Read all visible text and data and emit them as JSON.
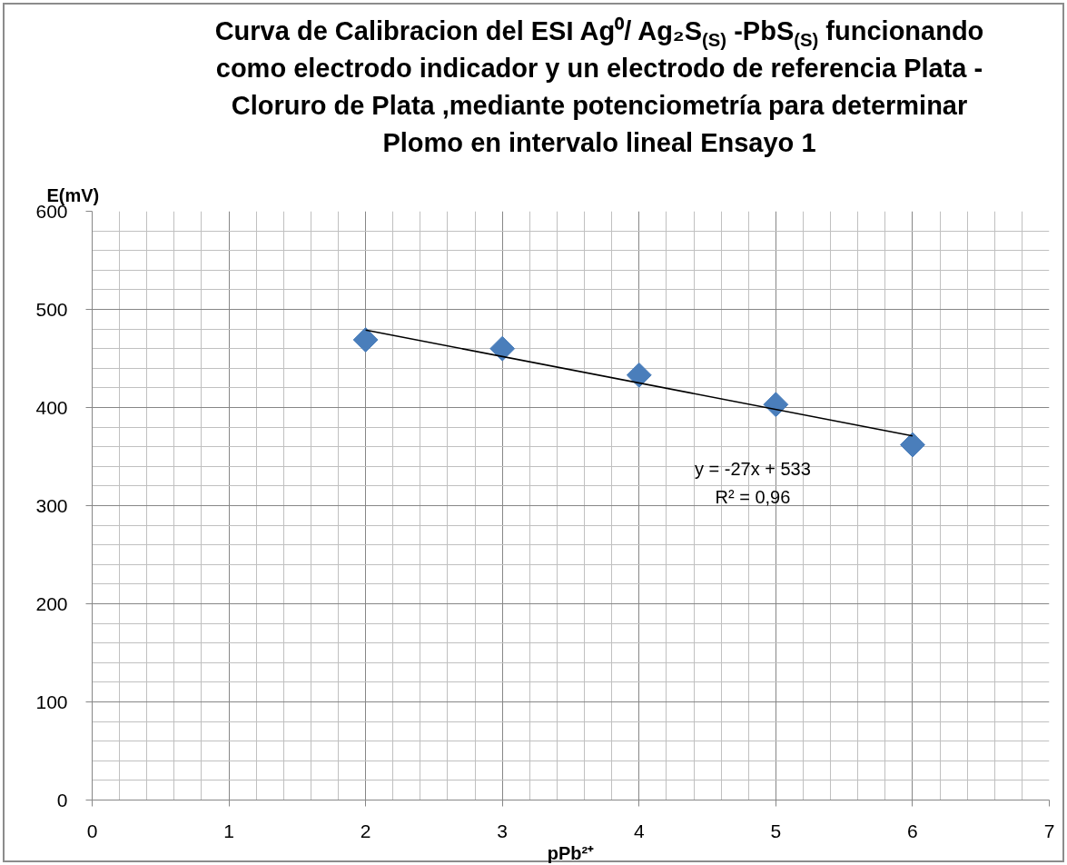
{
  "chart_data": {
    "type": "scatter",
    "title": "Curva de Calibracion del ESI Ag⁰/ Ag₂S$_{(S)}$ -PbS$_{(S)}$ funcionando como electrodo indicador y un electrodo de referencia Plata - Cloruro de Plata ,mediante potenciometría para determinar Plomo en intervalo lineal Ensayo 1",
    "xlabel": "pPb²⁺",
    "ylabel": "E(mV)",
    "annotations": [
      "y = -27x + 533",
      "R² = 0,96"
    ],
    "xlim": [
      0,
      7
    ],
    "xticks": [
      0,
      1,
      2,
      3,
      4,
      5,
      6,
      7
    ],
    "ylim": [
      0,
      600
    ],
    "yticks": [
      0,
      100,
      200,
      300,
      400,
      500,
      600
    ],
    "grid": true,
    "series": [
      {
        "color": "#4a7ebb",
        "marker": "diamond",
        "x": [
          2,
          3,
          4,
          5,
          6
        ],
        "values": [
          469,
          460,
          433,
          403,
          362
        ]
      },
      {
        "type": "line",
        "color": "#000000",
        "marker": "none",
        "line_style": "solid",
        "x": [
          2,
          6
        ],
        "values": [
          479,
          371
        ]
      }
    ]
  }
}
